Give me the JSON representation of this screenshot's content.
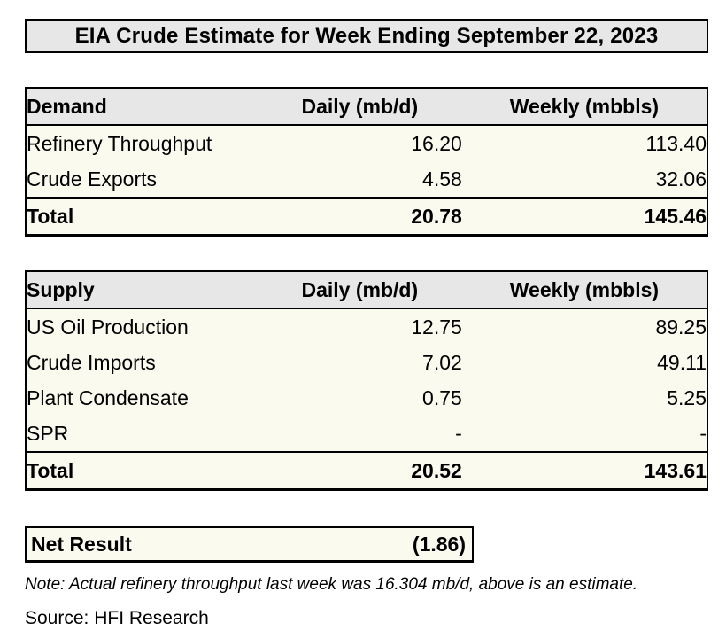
{
  "title": "EIA Crude Estimate for Week Ending September 22, 2023",
  "colors": {
    "header_bg": "#e7e7e7",
    "row_bg": "#fbfaef",
    "border": "#000000"
  },
  "demand_table": {
    "headers": [
      "Demand",
      "Daily (mb/d)",
      "Weekly (mbbls)"
    ],
    "rows": [
      {
        "label": "Refinery Throughput",
        "daily": "16.20",
        "weekly": "113.40"
      },
      {
        "label": "Crude Exports",
        "daily": "4.58",
        "weekly": "32.06"
      }
    ],
    "total": {
      "label": "Total",
      "daily": "20.78",
      "weekly": "145.46"
    }
  },
  "supply_table": {
    "headers": [
      "Supply",
      "Daily (mb/d)",
      "Weekly (mbbls)"
    ],
    "rows": [
      {
        "label": "US Oil Production",
        "daily": "12.75",
        "weekly": "89.25"
      },
      {
        "label": "Crude Imports",
        "daily": "7.02",
        "weekly": "49.11"
      },
      {
        "label": "Plant Condensate",
        "daily": "0.75",
        "weekly": "5.25"
      },
      {
        "label": "SPR",
        "daily": "-",
        "weekly": "-"
      }
    ],
    "total": {
      "label": "Total",
      "daily": "20.52",
      "weekly": "143.61"
    }
  },
  "net_result": {
    "label": "Net Result",
    "value": "(1.86)"
  },
  "note": "Note: Actual refinery throughput last week was 16.304 mb/d, above is an estimate.",
  "source": "Source: HFI Research"
}
